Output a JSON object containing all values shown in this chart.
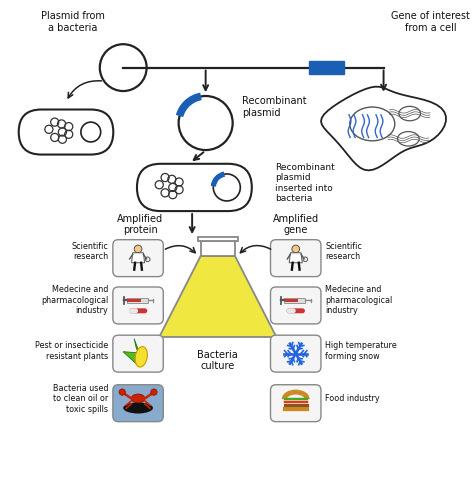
{
  "bg_color": "#ffffff",
  "top_labels": {
    "plasmid": "Plasmid from\na bacteria",
    "gene": "Gene of interest\nfrom a cell",
    "recombinant_plasmid": "Recombinant\nplasmid",
    "inserted": "Recombinant\nplasmid\ninserted into\nbacteria"
  },
  "bottom_labels": {
    "amplified_protein": "Amplified\nprotein",
    "amplified_gene": "Amplified\ngene",
    "bacteria_culture": "Bacteria\nculture",
    "sci_research_left": "Scientific\nresearch",
    "med_left": "Medecine and\npharmacological\nindustry",
    "pest": "Pest or insecticide\nresistant plants",
    "bacteria_clean": "Bacteria used\nto clean oil or\ntoxic spills",
    "sci_research_right": "Scientific\nresearch",
    "med_right": "Medecine and\npharmacological\nindustry",
    "snow": "High temperature\nforming snow",
    "food": "Food industry"
  },
  "blue_color": "#1a5fb5",
  "gene_blue": "#1a5fb5",
  "yellow_flask": "#f0e840",
  "line_color": "#222222",
  "box_bg": "#f5f5f5",
  "box_edge": "#888888",
  "oil_bg": "#88aacc"
}
